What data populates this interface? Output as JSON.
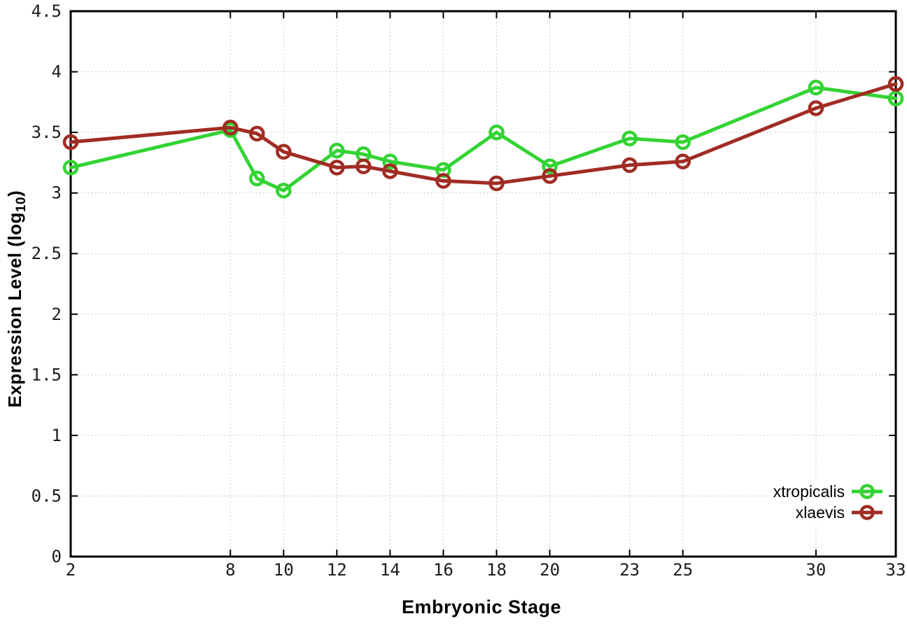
{
  "chart_data": {
    "type": "line",
    "title": "",
    "xlabel": "Embryonic Stage",
    "ylabel": {
      "text": "Expression Level (log",
      "subscript": "10",
      "suffix": ")"
    },
    "x": [
      2,
      8,
      9,
      10,
      12,
      13,
      14,
      16,
      18,
      20,
      23,
      25,
      30,
      33
    ],
    "series": [
      {
        "name": "xtropicalis",
        "color": "#33d333",
        "marker": "open-circle",
        "values": [
          3.21,
          3.52,
          3.12,
          3.02,
          3.35,
          3.32,
          3.26,
          3.19,
          3.5,
          3.22,
          3.45,
          3.42,
          3.87,
          3.78
        ]
      },
      {
        "name": "xlaevis",
        "color": "#a02c23",
        "marker": "open-circle",
        "values": [
          3.42,
          3.54,
          3.49,
          3.34,
          3.21,
          3.22,
          3.18,
          3.1,
          3.08,
          3.14,
          3.23,
          3.26,
          3.7,
          3.9
        ]
      }
    ],
    "xlim": [
      2,
      33
    ],
    "ylim": [
      0,
      4.5
    ],
    "x_ticks": {
      "values": [
        2,
        8,
        10,
        12,
        14,
        16,
        18,
        20,
        23,
        25,
        30,
        33
      ],
      "labels": [
        "2",
        "8",
        "10",
        "12",
        "14",
        "16",
        "18",
        "20",
        "23",
        "25",
        "30",
        "33"
      ]
    },
    "y_ticks": {
      "values": [
        0,
        0.5,
        1,
        1.5,
        2,
        2.5,
        3,
        3.5,
        4,
        4.5
      ],
      "labels": [
        "0",
        "0.5",
        "1",
        "1.5",
        "2",
        "2.5",
        "3",
        "3.5",
        "4",
        "4.5"
      ]
    },
    "grid": true,
    "grid_color": "#b8b8b8",
    "axis_color": "#000000",
    "tick_label_color": "#1c1c1c",
    "legend_position": "bottom-right"
  }
}
